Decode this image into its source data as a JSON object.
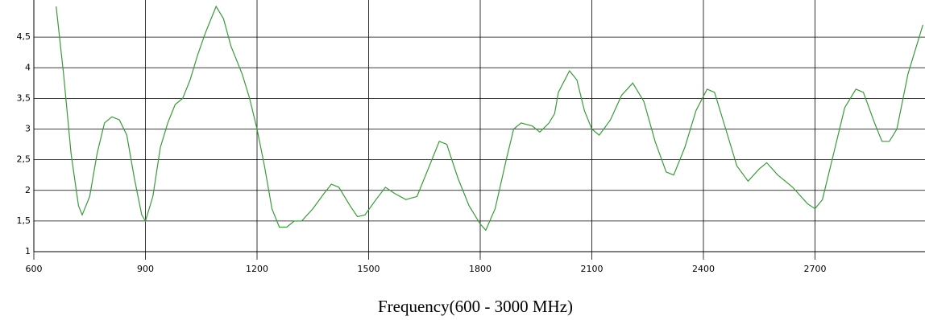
{
  "chart_data": {
    "type": "line",
    "x_label": "Frequency(600 - 3000 MHz)",
    "x": [
      660,
      680,
      700,
      720,
      730,
      750,
      770,
      790,
      810,
      830,
      850,
      870,
      890,
      900,
      920,
      940,
      960,
      980,
      1000,
      1020,
      1040,
      1060,
      1080,
      1090,
      1110,
      1130,
      1160,
      1180,
      1200,
      1220,
      1240,
      1260,
      1280,
      1300,
      1320,
      1350,
      1380,
      1400,
      1420,
      1450,
      1470,
      1490,
      1520,
      1545,
      1570,
      1600,
      1630,
      1660,
      1690,
      1710,
      1740,
      1770,
      1800,
      1815,
      1840,
      1870,
      1890,
      1910,
      1940,
      1960,
      1985,
      2000,
      2010,
      2040,
      2060,
      2080,
      2100,
      2120,
      2150,
      2180,
      2210,
      2240,
      2270,
      2300,
      2320,
      2350,
      2380,
      2410,
      2430,
      2460,
      2490,
      2520,
      2550,
      2570,
      2600,
      2640,
      2680,
      2700,
      2720,
      2750,
      2780,
      2810,
      2830,
      2860,
      2880,
      2900,
      2920,
      2950,
      2990
    ],
    "series": [
      {
        "color": "#3a9a3a",
        "values": [
          5.0,
          3.9,
          2.6,
          1.75,
          1.6,
          1.9,
          2.6,
          3.1,
          3.2,
          3.15,
          2.9,
          2.2,
          1.6,
          1.5,
          1.9,
          2.7,
          3.1,
          3.4,
          3.5,
          3.8,
          4.2,
          4.55,
          4.85,
          5.0,
          4.8,
          4.35,
          3.9,
          3.5,
          3.0,
          2.4,
          1.7,
          1.4,
          1.4,
          1.5,
          1.5,
          1.7,
          1.95,
          2.1,
          2.05,
          1.75,
          1.57,
          1.6,
          1.85,
          2.05,
          1.95,
          1.85,
          1.9,
          2.35,
          2.8,
          2.75,
          2.2,
          1.75,
          1.45,
          1.35,
          1.7,
          2.5,
          3.0,
          3.1,
          3.05,
          2.95,
          3.1,
          3.25,
          3.6,
          3.95,
          3.8,
          3.3,
          3.0,
          2.9,
          3.15,
          3.55,
          3.75,
          3.45,
          2.8,
          2.3,
          2.25,
          2.7,
          3.3,
          3.65,
          3.6,
          3.0,
          2.4,
          2.15,
          2.35,
          2.45,
          2.25,
          2.05,
          1.78,
          1.7,
          1.85,
          2.6,
          3.35,
          3.65,
          3.6,
          3.1,
          2.8,
          2.8,
          3.0,
          3.9,
          4.7
        ]
      }
    ],
    "xlim": [
      600,
      3000
    ],
    "ylim": [
      1,
      5
    ],
    "xticks": [
      600,
      900,
      1200,
      1500,
      1800,
      2100,
      2400,
      2700
    ],
    "yticks": [
      1,
      {
        "value": 1.5,
        "label": "1,5"
      },
      2,
      {
        "value": 2.5,
        "label": "2,5"
      },
      3,
      {
        "value": 3.5,
        "label": "3,5"
      },
      4,
      {
        "value": 4.5,
        "label": "4,5"
      }
    ],
    "grid": true
  }
}
